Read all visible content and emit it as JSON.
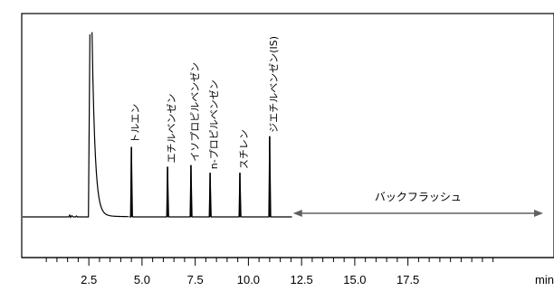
{
  "chart_data": {
    "type": "line",
    "title": "",
    "xlabel": "",
    "ylabel": "",
    "x_unit": "min",
    "xlim": [
      0,
      21.5
    ],
    "ylim": [
      0,
      120
    ],
    "grid": false,
    "x_ticks": [
      2.5,
      5.0,
      7.5,
      10.0,
      12.5,
      15.0,
      17.5
    ],
    "x_tick_labels": [
      "2.5",
      "5.0",
      "7.5",
      "10.0",
      "12.5",
      "15.0",
      "17.5"
    ],
    "x_minor_step": 0.5,
    "baseline": 0,
    "solvent_peak": {
      "time": 2.6,
      "height": 120
    },
    "peaks": [
      {
        "name": "トルエン",
        "time": 4.5,
        "height": 46
      },
      {
        "name": "エチルベンゼン",
        "time": 6.2,
        "height": 33
      },
      {
        "name": "イソプロピルベンゼン",
        "time": 7.3,
        "height": 34
      },
      {
        "name": "n-プロピルベンゼン",
        "time": 8.2,
        "height": 29
      },
      {
        "name": "スチレン",
        "time": 9.6,
        "height": 29
      },
      {
        "name": "ジエチルベンゼン(IS)",
        "time": 11.0,
        "height": 53
      }
    ],
    "backflush": {
      "label": "バックフラッシュ",
      "start": 12.1,
      "end": 21.5
    }
  },
  "colors": {
    "trace": "#000000",
    "arrow": "#606060",
    "frame": "#000000"
  }
}
